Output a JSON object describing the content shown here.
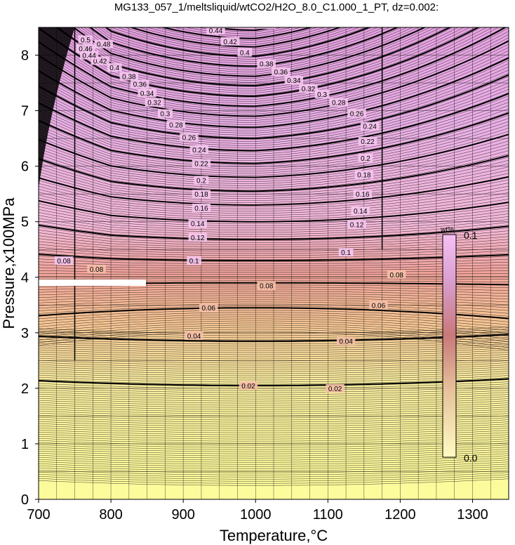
{
  "chart_data": {
    "type": "contour",
    "title": "MG133_057_1/meltsliquid/wtCO2/H2O_8.0_C1.000_1_PT, dz=0.002:",
    "xlabel": "Temperature,°C",
    "ylabel": "Pressure,x100MPa",
    "xlim": [
      700,
      1350
    ],
    "ylim": [
      0,
      8.5
    ],
    "xticks": [
      "700",
      "800",
      "900",
      "1000",
      "1100",
      "1200",
      "1300"
    ],
    "yticks": [
      "0",
      "1",
      "2",
      "3",
      "4",
      "5",
      "6",
      "7",
      "8"
    ],
    "grid": true,
    "contour_interval": 0.002,
    "major_contour_interval": 0.02,
    "colorbar": {
      "unit": "wt%",
      "min_label": "0.0",
      "max_label": "0.1",
      "min": 0.0,
      "max": 0.1,
      "colors": [
        "#ffffa0",
        "#f7ce95",
        "#f0a09a",
        "#f3b8d8",
        "#e8a0e0"
      ]
    },
    "isolines": [
      {
        "level": 0.02,
        "pressure_at_1000": 2.05
      },
      {
        "level": 0.04,
        "pressure_at_1000": 2.85
      },
      {
        "level": 0.06,
        "pressure_at_1000": 3.45
      },
      {
        "level": 0.08,
        "pressure_at_1000": 3.9
      },
      {
        "level": 0.1,
        "pressure_at_1000": 4.3
      },
      {
        "level": 0.12,
        "pressure_at_1000": 4.68
      },
      {
        "level": 0.14,
        "pressure_at_1000": 5.0
      },
      {
        "level": 0.16,
        "pressure_at_1000": 5.3
      },
      {
        "level": 0.18,
        "pressure_at_1000": 5.55
      },
      {
        "level": 0.2,
        "pressure_at_1000": 5.8
      },
      {
        "level": 0.22,
        "pressure_at_1000": 6.05
      },
      {
        "level": 0.24,
        "pressure_at_1000": 6.28
      },
      {
        "level": 0.26,
        "pressure_at_1000": 6.5
      },
      {
        "level": 0.28,
        "pressure_at_1000": 6.7
      },
      {
        "level": 0.3,
        "pressure_at_1000": 6.9
      },
      {
        "level": 0.32,
        "pressure_at_1000": 7.08
      },
      {
        "level": 0.34,
        "pressure_at_1000": 7.26
      },
      {
        "level": 0.36,
        "pressure_at_1000": 7.45
      },
      {
        "level": 0.38,
        "pressure_at_1000": 7.62
      },
      {
        "level": 0.4,
        "pressure_at_1000": 7.8
      },
      {
        "level": 0.42,
        "pressure_at_1000": 7.98
      },
      {
        "level": 0.44,
        "pressure_at_1000": 8.15
      },
      {
        "level": 0.46,
        "pressure_at_1000": 8.3
      },
      {
        "level": 0.48,
        "pressure_at_1000": 8.45
      }
    ],
    "contour_labels": [
      {
        "text": "0.02",
        "x": 990,
        "y": 2.05
      },
      {
        "text": "0.02",
        "x": 1110,
        "y": 2.0
      },
      {
        "text": "0.04",
        "x": 915,
        "y": 2.95
      },
      {
        "text": "0.04",
        "x": 1125,
        "y": 2.85
      },
      {
        "text": "0.06",
        "x": 935,
        "y": 3.45
      },
      {
        "text": "0.06",
        "x": 1170,
        "y": 3.5
      },
      {
        "text": "0.08",
        "x": 1015,
        "y": 3.85
      },
      {
        "text": "0.08",
        "x": 1195,
        "y": 4.05
      },
      {
        "text": "0.08",
        "x": 780,
        "y": 4.15
      },
      {
        "text": "0.08",
        "x": 735,
        "y": 4.3
      },
      {
        "text": "0.1",
        "x": 915,
        "y": 4.3
      },
      {
        "text": "0.1",
        "x": 1125,
        "y": 4.45
      },
      {
        "text": "0.12",
        "x": 920,
        "y": 4.72
      },
      {
        "text": "0.12",
        "x": 1140,
        "y": 4.95
      },
      {
        "text": "0.14",
        "x": 920,
        "y": 4.97
      },
      {
        "text": "0.14",
        "x": 1145,
        "y": 5.2
      },
      {
        "text": "0.16",
        "x": 925,
        "y": 5.25
      },
      {
        "text": "0.16",
        "x": 1148,
        "y": 5.5
      },
      {
        "text": "0.18",
        "x": 925,
        "y": 5.5
      },
      {
        "text": "0.18",
        "x": 1150,
        "y": 5.85
      },
      {
        "text": "0.2",
        "x": 925,
        "y": 5.75
      },
      {
        "text": "0.2",
        "x": 1152,
        "y": 6.15
      },
      {
        "text": "0.22",
        "x": 925,
        "y": 6.05
      },
      {
        "text": "0.22",
        "x": 1155,
        "y": 6.45
      },
      {
        "text": "0.24",
        "x": 922,
        "y": 6.3
      },
      {
        "text": "0.24",
        "x": 1158,
        "y": 6.72
      },
      {
        "text": "0.26",
        "x": 908,
        "y": 6.52
      },
      {
        "text": "0.26",
        "x": 1140,
        "y": 6.95
      },
      {
        "text": "0.28",
        "x": 890,
        "y": 6.75
      },
      {
        "text": "0.28",
        "x": 1115,
        "y": 7.15
      },
      {
        "text": "0.3",
        "x": 875,
        "y": 6.95
      },
      {
        "text": "0.3",
        "x": 1092,
        "y": 7.3
      },
      {
        "text": "0.32",
        "x": 860,
        "y": 7.15
      },
      {
        "text": "0.32",
        "x": 1073,
        "y": 7.4
      },
      {
        "text": "0.34",
        "x": 850,
        "y": 7.32
      },
      {
        "text": "0.34",
        "x": 1053,
        "y": 7.55
      },
      {
        "text": "0.36",
        "x": 840,
        "y": 7.48
      },
      {
        "text": "0.36",
        "x": 1035,
        "y": 7.7
      },
      {
        "text": "0.38",
        "x": 825,
        "y": 7.62
      },
      {
        "text": "0.38",
        "x": 1015,
        "y": 7.85
      },
      {
        "text": "0.4",
        "x": 805,
        "y": 7.78
      },
      {
        "text": "0.4",
        "x": 985,
        "y": 8.05
      },
      {
        "text": "0.42",
        "x": 785,
        "y": 7.9
      },
      {
        "text": "0.42",
        "x": 965,
        "y": 8.25
      },
      {
        "text": "0.44",
        "x": 770,
        "y": 8.0
      },
      {
        "text": "0.44",
        "x": 945,
        "y": 8.45
      },
      {
        "text": "0.46",
        "x": 765,
        "y": 8.12
      },
      {
        "text": "0.46",
        "x": 925,
        "y": 8.65
      },
      {
        "text": "0.48",
        "x": 790,
        "y": 8.2
      },
      {
        "text": "0.48",
        "x": 985,
        "y": 8.55
      },
      {
        "text": "0.48",
        "x": 1015,
        "y": 8.55
      },
      {
        "text": "0.5",
        "x": 765,
        "y": 8.28
      }
    ]
  }
}
